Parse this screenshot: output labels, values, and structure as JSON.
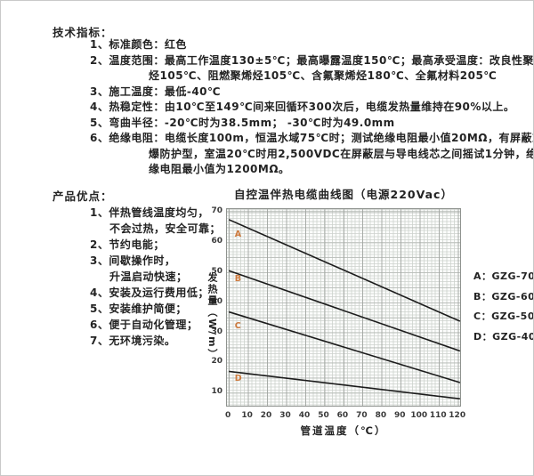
{
  "specs": {
    "title": "技术指标：",
    "items": [
      {
        "lines": [
          "1、标准颜色：红色"
        ]
      },
      {
        "lines": [
          "2、温度范围：最高工作温度130±5℃；最高曝露温度150℃；最高承受温度：改良性聚烯",
          "烃105℃、阻燃聚烯烃105℃、含氟聚烯烃180℃、全氟材料205℃"
        ]
      },
      {
        "lines": [
          "3、施工温度：最低-40℃"
        ]
      },
      {
        "lines": [
          "4、热稳定性：由10℃至149℃间来回循环300次后，电缆发热量维持在90%以上。"
        ]
      },
      {
        "lines": [
          "5、弯曲半径：-20℃时为38.5mm；  -30℃时为49.0mm"
        ]
      },
      {
        "lines": [
          "6、绝缘电阻：电缆长度100m，恒温水域75℃时；测试绝缘电阻最小值20MΩ，有屏蔽或防",
          "爆防护型，室温20℃时用2,500VDC在屏蔽层与导电线芯之间摇试1分钟，绝",
          "缘电阻最小值为1200MΩ。"
        ]
      }
    ]
  },
  "advantages": {
    "title": "产品优点：",
    "lines": [
      {
        "text": "1、伴热管线温度均匀，",
        "indent": false
      },
      {
        "text": "不会过热，安全可靠；",
        "indent": true
      },
      {
        "text": "2、节约电能；",
        "indent": false
      },
      {
        "text": "3、间歇操作时，",
        "indent": false
      },
      {
        "text": "升温启动快速；",
        "indent": true
      },
      {
        "text": "4、安装及运行费用低；",
        "indent": false
      },
      {
        "text": "5、安装维护简便；",
        "indent": false
      },
      {
        "text": "6、便于自动化管理；",
        "indent": false
      },
      {
        "text": "7、无环境污染。",
        "indent": false
      }
    ]
  },
  "chart_data": {
    "type": "line",
    "title": "自控温伴热电缆曲线图（电源220Vac）",
    "xlabel": "管道温度（℃）",
    "ylabel": "发热量（W/m）",
    "xlim": [
      -1,
      122
    ],
    "ylim": [
      5,
      71
    ],
    "x_ticks": [
      0,
      10,
      20,
      30,
      40,
      50,
      60,
      70,
      80,
      90,
      100,
      110,
      120
    ],
    "y_ticks": [
      10,
      20,
      30,
      40,
      50,
      60,
      70
    ],
    "grid": "on",
    "legend_position": "right",
    "line_color": "#1c1c1c",
    "label_color": "#cd7a3e",
    "series": [
      {
        "key": "A",
        "name": "GZG-70",
        "points": [
          [
            0,
            67.5
          ],
          [
            121,
            33.7
          ]
        ],
        "label_pos": [
          4.5,
          62.5
        ]
      },
      {
        "key": "B",
        "name": "GZG-60",
        "points": [
          [
            0,
            50.5
          ],
          [
            121,
            23.8
          ]
        ],
        "label_pos": [
          4.5,
          47.5
        ]
      },
      {
        "key": "C",
        "name": "GZG-50",
        "points": [
          [
            0,
            36.8
          ],
          [
            121,
            13.3
          ]
        ],
        "label_pos": [
          4.5,
          32.0
        ]
      },
      {
        "key": "D",
        "name": "GZG-40",
        "points": [
          [
            0,
            17.0
          ],
          [
            121,
            7.9
          ]
        ],
        "label_pos": [
          4.5,
          14.5
        ]
      }
    ],
    "legend": [
      {
        "label": "A：GZG-70"
      },
      {
        "label": "B：GZG-60"
      },
      {
        "label": "C：GZG-50"
      },
      {
        "label": "D：GZG-40"
      }
    ]
  }
}
